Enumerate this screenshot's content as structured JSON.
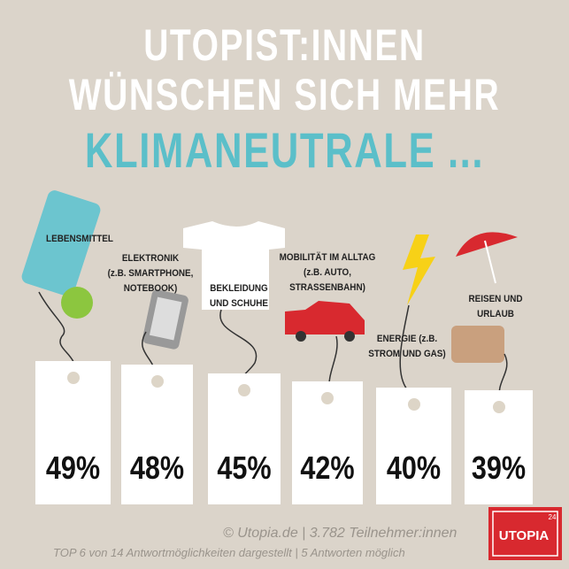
{
  "chart_data": {
    "type": "tags",
    "title": [
      "UTOPIST:INNEN",
      "WÜNSCHEN SICH MEHR",
      "KLIMANEUTRALE ..."
    ],
    "categories": [
      "LEBENSMITTEL",
      "ELEKTRONIK\n(z.B. SMARTPHONE,\nNOTEBOOK)",
      "BEKLEIDUNG\nUND SCHUHE",
      "MOBILITÄT IM ALLTAG\n(z.B. AUTO,\nSTRASSENBAHN)",
      "ENERGIE (z.B.\nSTROM UND GAS)",
      "REISEN UND\nURLAUB"
    ],
    "values": [
      49,
      48,
      45,
      42,
      40,
      39
    ],
    "value_labels": [
      "49%",
      "48%",
      "45%",
      "42%",
      "40%",
      "39%"
    ],
    "color": "#ffffff"
  },
  "footer": {
    "source": "© Utopia.de | 3.782 Teilnehmer:innen",
    "note": "TOP 6 von 14 Antwortmöglichkeiten dargestellt | 5 Antworten möglich"
  },
  "logo": {
    "name": "UTOPIA",
    "badge": "24"
  }
}
